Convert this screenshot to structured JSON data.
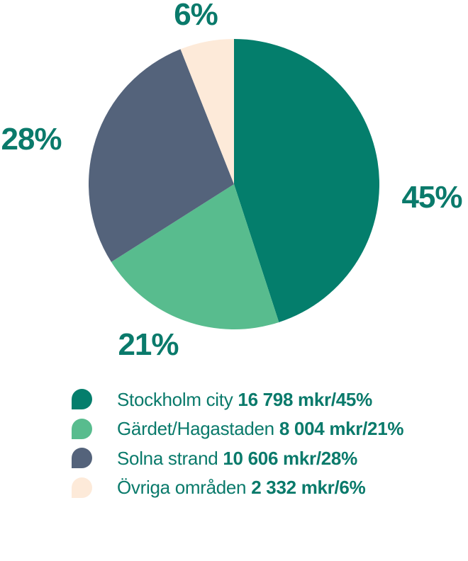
{
  "chart_data": {
    "type": "pie",
    "unit": "mkr",
    "direction": "clockwise",
    "start_angle_deg": 0,
    "legend_position": "bottom",
    "text_color": "#0a7a6b",
    "segments": [
      {
        "label": "Stockholm city",
        "value_mkr": 16798,
        "pct": 45,
        "pct_label": "45%",
        "value_label": "16 798 mkr/45%",
        "color": "#047e6c"
      },
      {
        "label": "Gärdet/Hagastaden",
        "value_mkr": 8004,
        "pct": 21,
        "pct_label": "21%",
        "value_label": "8 004 mkr/21%",
        "color": "#58bc8e"
      },
      {
        "label": "Solna strand",
        "value_mkr": 10606,
        "pct": 28,
        "pct_label": "28%",
        "value_label": "10 606 mkr/28%",
        "color": "#54637b"
      },
      {
        "label": "Övriga områden",
        "value_mkr": 2332,
        "pct": 6,
        "pct_label": "6%",
        "value_label": "2 332 mkr/6%",
        "color": "#fdead9"
      }
    ]
  }
}
